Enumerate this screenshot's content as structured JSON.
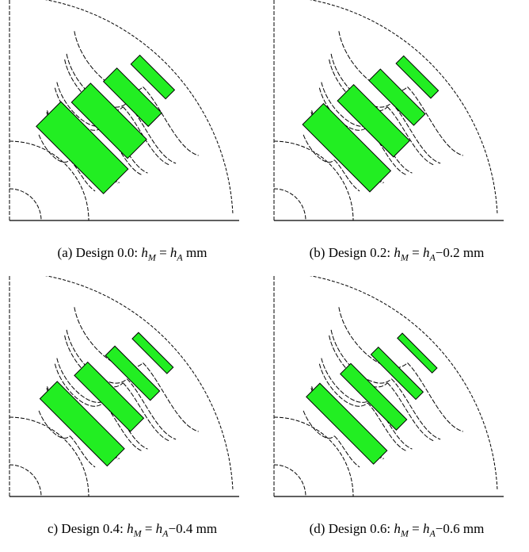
{
  "figure": {
    "panels": [
      {
        "label": "(a)",
        "design": "Design 0.0:",
        "lhs_var": "h",
        "lhs_sub": "M",
        "eq": "=",
        "rhs_var": "h",
        "rhs_sub": "A",
        "offset": "",
        "unit": "mm",
        "magnet_thickness_scale": 1.0
      },
      {
        "label": "(b)",
        "design": "Design 0.2:",
        "lhs_var": "h",
        "lhs_sub": "M",
        "eq": "=",
        "rhs_var": "h",
        "rhs_sub": "A",
        "offset": "−0.2",
        "unit": "mm",
        "magnet_thickness_scale": 0.85
      },
      {
        "label": "c)",
        "design": "Design 0.4:",
        "lhs_var": "h",
        "lhs_sub": "M",
        "eq": "=",
        "rhs_var": "h",
        "rhs_sub": "A",
        "offset": "−0.4",
        "unit": "mm",
        "magnet_thickness_scale": 0.7
      },
      {
        "label": "(d)",
        "design": "Design 0.6:",
        "lhs_var": "h",
        "lhs_sub": "M",
        "eq": "=",
        "rhs_var": "h",
        "rhs_sub": "A",
        "offset": "−0.6",
        "unit": "mm",
        "magnet_thickness_scale": 0.55
      }
    ],
    "colors": {
      "magnet": "#22ee22",
      "outline": "#000000"
    }
  }
}
